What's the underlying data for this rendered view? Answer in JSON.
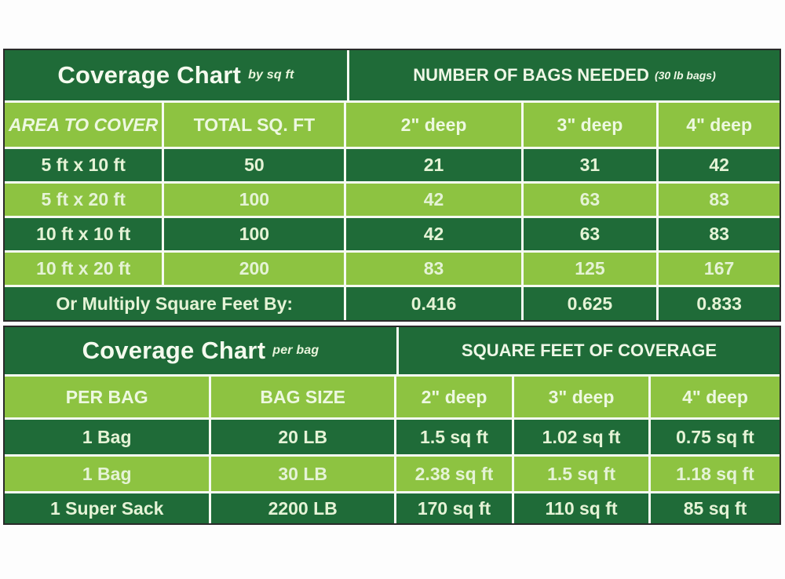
{
  "colors": {
    "dark_green": "#1f6b38",
    "light_green": "#8dc341",
    "pale_text": "#e5f3d6",
    "outer_border": "#2a2a2a",
    "page_background": "#fdfdfd"
  },
  "table_by_sqft": {
    "title": "Coverage Chart",
    "title_suffix": "by sq ft",
    "bags_header": "NUMBER OF BAGS NEEDED",
    "bags_header_suffix": "(30 lb bags)",
    "columns": [
      "AREA TO COVER",
      "TOTAL SQ. FT",
      "2\" deep",
      "3\" deep",
      "4\" deep"
    ],
    "rows": [
      [
        "5 ft x 10 ft",
        "50",
        "21",
        "31",
        "42"
      ],
      [
        "5 ft x 20 ft",
        "100",
        "42",
        "63",
        "83"
      ],
      [
        "10 ft x 10 ft",
        "100",
        "42",
        "63",
        "83"
      ],
      [
        "10 ft x 20 ft",
        "200",
        "83",
        "125",
        "167"
      ]
    ],
    "multiplier_label": "Or Multiply Square Feet By:",
    "multipliers": [
      "0.416",
      "0.625",
      "0.833"
    ]
  },
  "table_per_bag": {
    "title": "Coverage Chart",
    "title_suffix": "per bag",
    "coverage_header": "SQUARE FEET OF COVERAGE",
    "columns": [
      "PER BAG",
      "BAG SIZE",
      "2\" deep",
      "3\" deep",
      "4\" deep"
    ],
    "rows": [
      [
        "1 Bag",
        "20 LB",
        "1.5 sq ft",
        "1.02 sq ft",
        "0.75 sq ft"
      ],
      [
        "1 Bag",
        "30 LB",
        "2.38 sq ft",
        "1.5 sq ft",
        "1.18 sq ft"
      ],
      [
        "1 Super Sack",
        "2200 LB",
        "170 sq ft",
        "110 sq ft",
        "85 sq ft"
      ]
    ]
  },
  "chart_data": [
    {
      "type": "table",
      "title": "Coverage Chart by sq ft — NUMBER OF BAGS NEEDED (30 lb bags)",
      "columns": [
        "AREA TO COVER",
        "TOTAL SQ. FT",
        "2\" deep",
        "3\" deep",
        "4\" deep"
      ],
      "rows": [
        [
          "5 ft x 10 ft",
          50,
          21,
          31,
          42
        ],
        [
          "5 ft x 20 ft",
          100,
          42,
          63,
          83
        ],
        [
          "10 ft x 10 ft",
          100,
          42,
          63,
          83
        ],
        [
          "10 ft x 20 ft",
          200,
          83,
          125,
          167
        ],
        [
          "Or Multiply Square Feet By:",
          null,
          0.416,
          0.625,
          0.833
        ]
      ]
    },
    {
      "type": "table",
      "title": "Coverage Chart per bag — SQUARE FEET OF COVERAGE",
      "columns": [
        "PER BAG",
        "BAG SIZE",
        "2\" deep",
        "3\" deep",
        "4\" deep"
      ],
      "rows": [
        [
          "1 Bag",
          "20 LB",
          1.5,
          1.02,
          0.75
        ],
        [
          "1 Bag",
          "30 LB",
          2.38,
          1.5,
          1.18
        ],
        [
          "1 Super Sack",
          "2200 LB",
          170,
          110,
          85
        ]
      ]
    }
  ]
}
